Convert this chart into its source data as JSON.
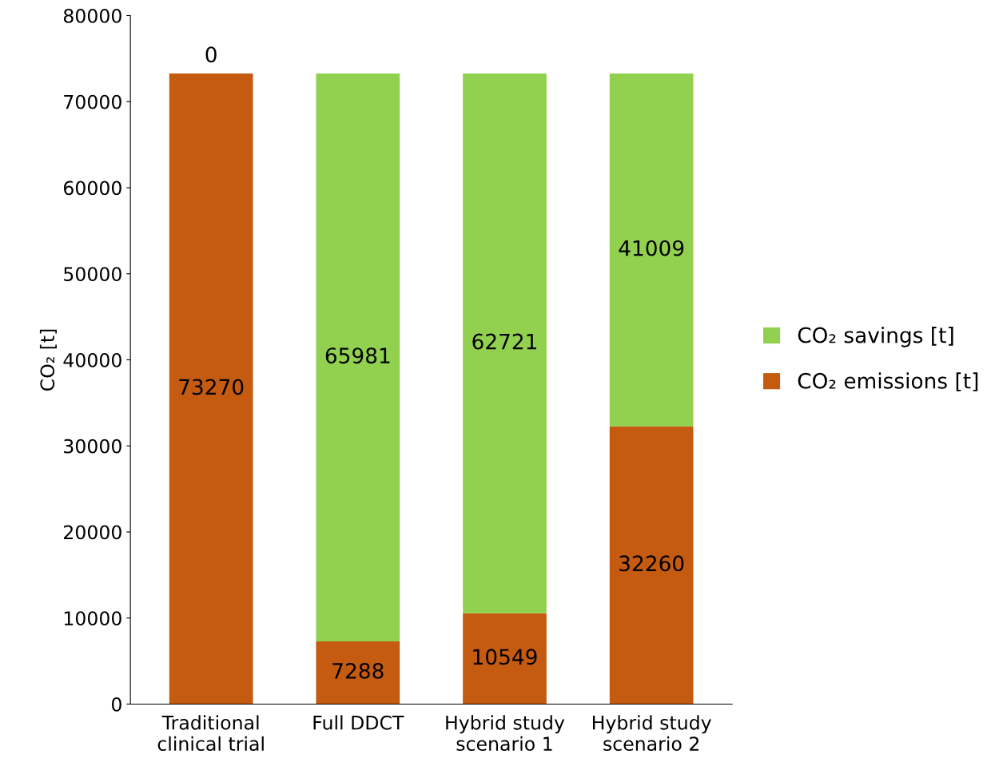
{
  "chart_data": {
    "type": "bar",
    "stacked": true,
    "ylabel": "CO₂ [t]",
    "categories": [
      "Traditional\nclinical trial",
      "Full DDCT",
      "Hybrid study\nscenario 1",
      "Hybrid study\nscenario 2"
    ],
    "series": [
      {
        "name": "CO₂ emissions [t]",
        "color": "#c55a11",
        "values": [
          73270,
          7288,
          10549,
          32260
        ]
      },
      {
        "name": "CO₂ savings [t]",
        "color": "#92d050",
        "values": [
          0,
          65981,
          62721,
          41009
        ]
      }
    ],
    "ylim": [
      0,
      80000
    ],
    "yticks": [
      0,
      10000,
      20000,
      30000,
      40000,
      50000,
      60000,
      70000,
      80000
    ],
    "data_labels": true,
    "grid": false,
    "legend": "right"
  }
}
